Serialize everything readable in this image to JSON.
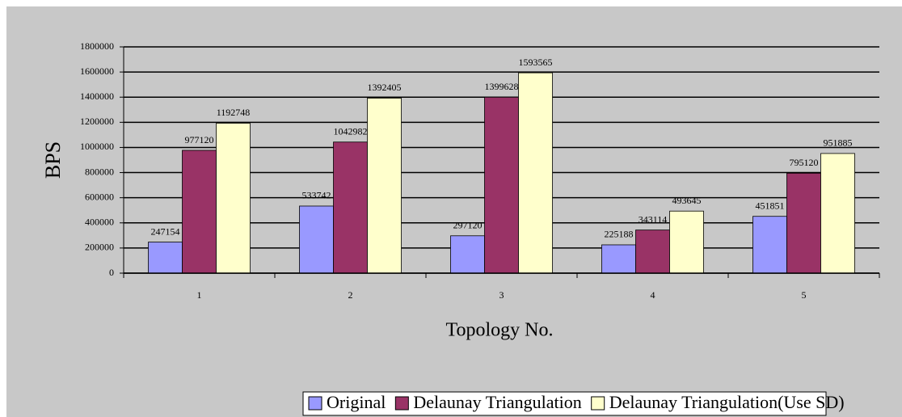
{
  "chart_data": {
    "type": "bar",
    "x_label": "Topology No.",
    "y_label": "BPS",
    "categories": [
      "1",
      "2",
      "3",
      "4",
      "5"
    ],
    "series": [
      {
        "name": "Original",
        "color": "#9999ff",
        "values": [
          247154,
          533742,
          297120,
          225188,
          451851
        ]
      },
      {
        "name": "Delaunay Triangulation",
        "color": "#993366",
        "values": [
          977120,
          1042982,
          1399628,
          343114,
          795120
        ]
      },
      {
        "name": "Delaunay Triangulation(Use SD)",
        "color": "#ffffcc",
        "values": [
          1192748,
          1392405,
          1593565,
          493645,
          951885
        ]
      }
    ],
    "ylim": [
      0,
      1800000
    ],
    "yticks": [
      0,
      200000,
      400000,
      600000,
      800000,
      1000000,
      1200000,
      1400000,
      1600000,
      1800000
    ],
    "grid": true,
    "legend": "bottom"
  }
}
